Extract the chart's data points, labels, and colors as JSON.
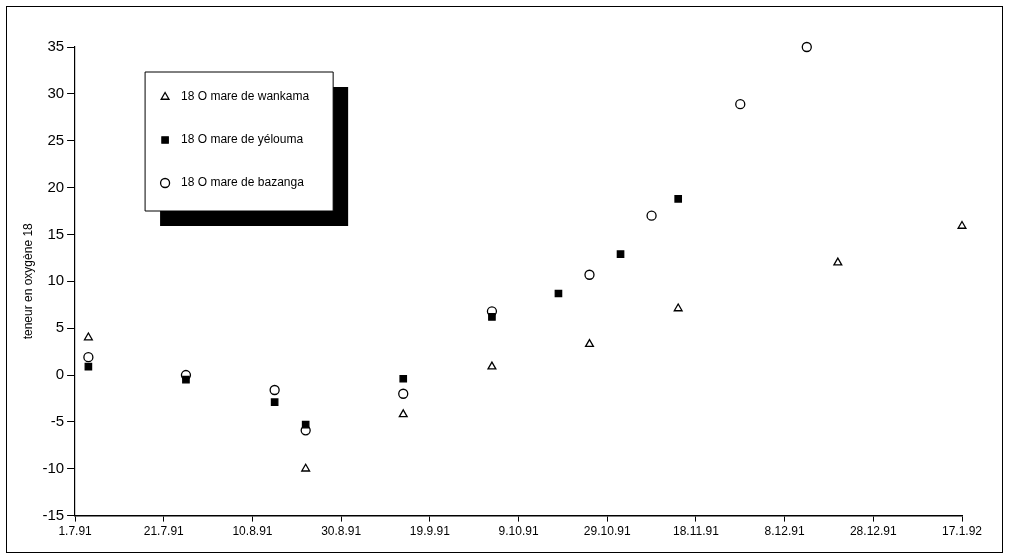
{
  "chart_data": {
    "type": "scatter",
    "ylabel": "teneur en oxygène 18",
    "xlim": [
      "1991-07-01",
      "1992-01-17"
    ],
    "xticks": [
      {
        "value": "1991-07-01",
        "label": "1.7.91"
      },
      {
        "value": "1991-07-21",
        "label": "21.7.91"
      },
      {
        "value": "1991-08-10",
        "label": "10.8.91"
      },
      {
        "value": "1991-08-30",
        "label": "30.8.91"
      },
      {
        "value": "1991-09-19",
        "label": "19.9.91"
      },
      {
        "value": "1991-10-09",
        "label": "9.10.91"
      },
      {
        "value": "1991-10-29",
        "label": "29.10.91"
      },
      {
        "value": "1991-11-18",
        "label": "18.11.91"
      },
      {
        "value": "1991-12-08",
        "label": "8.12.91"
      },
      {
        "value": "1991-12-28",
        "label": "28.12.91"
      },
      {
        "value": "1992-01-17",
        "label": "17.1.92"
      }
    ],
    "ylim": [
      -15,
      35
    ],
    "yticks": [
      -15,
      -10,
      -5,
      0,
      5,
      10,
      15,
      20,
      25,
      30,
      35
    ],
    "grid": false,
    "legend": "top left",
    "series": [
      {
        "name": "18 O mare de wankama",
        "color": "#000000",
        "marker": "triangle",
        "x": [
          "1991-07-04",
          "1991-08-22",
          "1991-09-13",
          "1991-10-03",
          "1991-10-25",
          "1991-11-14",
          "1991-12-20",
          "1992-01-17"
        ],
        "values": [
          4,
          -10,
          -4.2,
          0.9,
          3.3,
          7.1,
          12,
          15.9
        ]
      },
      {
        "name": "18 O mare de yélouma",
        "color": "#000000",
        "marker": "square",
        "x": [
          "1991-07-04",
          "1991-07-26",
          "1991-08-15",
          "1991-08-22",
          "1991-09-13",
          "1991-10-03",
          "1991-10-18",
          "1991-11-01",
          "1991-11-14"
        ],
        "values": [
          0.9,
          -0.5,
          -2.9,
          -5.3,
          -0.4,
          6.2,
          8.7,
          12.9,
          18.8
        ]
      },
      {
        "name": "18 O mare de bazanga",
        "color": "#000000",
        "marker": "circle",
        "x": [
          "1991-07-04",
          "1991-07-26",
          "1991-08-15",
          "1991-08-22",
          "1991-09-13",
          "1991-10-03",
          "1991-10-25",
          "1991-11-08",
          "1991-11-28",
          "1991-12-13"
        ],
        "values": [
          1.9,
          0,
          -1.6,
          -5.9,
          -2,
          6.8,
          10.7,
          17,
          28.9,
          35
        ]
      }
    ]
  }
}
